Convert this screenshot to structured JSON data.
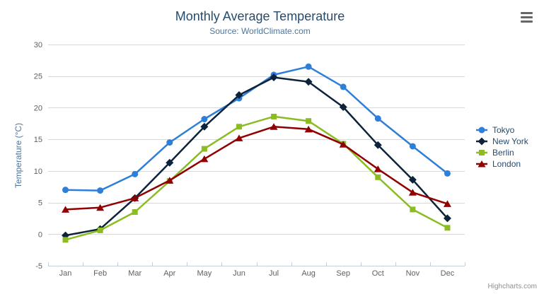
{
  "chart": {
    "credits": "Highcharts.com",
    "context_menu_icon": "hamburger-icon"
  },
  "chart_data": {
    "type": "line",
    "title": "Monthly Average Temperature",
    "subtitle": "Source: WorldClimate.com",
    "xlabel": "",
    "ylabel": "Temperature (°C)",
    "categories": [
      "Jan",
      "Feb",
      "Mar",
      "Apr",
      "May",
      "Jun",
      "Jul",
      "Aug",
      "Sep",
      "Oct",
      "Nov",
      "Dec"
    ],
    "ylim": [
      -5,
      30
    ],
    "yticks": [
      -5,
      0,
      5,
      10,
      15,
      20,
      25,
      30
    ],
    "grid": true,
    "legend_position": "right",
    "series": [
      {
        "name": "Tokyo",
        "marker": "circle",
        "color": "#2f7ed8",
        "values": [
          7.0,
          6.9,
          9.5,
          14.5,
          18.2,
          21.5,
          25.2,
          26.5,
          23.3,
          18.3,
          13.9,
          9.6
        ]
      },
      {
        "name": "New York",
        "marker": "diamond",
        "color": "#0d233a",
        "values": [
          -0.2,
          0.8,
          5.7,
          11.3,
          17.0,
          22.0,
          24.8,
          24.1,
          20.1,
          14.1,
          8.6,
          2.5
        ]
      },
      {
        "name": "Berlin",
        "marker": "square",
        "color": "#8bbc21",
        "values": [
          -0.9,
          0.6,
          3.5,
          8.4,
          13.5,
          17.0,
          18.6,
          17.9,
          14.3,
          9.0,
          3.9,
          1.0
        ]
      },
      {
        "name": "London",
        "marker": "triangle",
        "color": "#910000",
        "values": [
          3.9,
          4.2,
          5.7,
          8.5,
          11.9,
          15.2,
          17.0,
          16.6,
          14.2,
          10.3,
          6.6,
          4.8
        ]
      }
    ]
  },
  "colors": {
    "background": "#ffffff",
    "title": "#274b6d",
    "subtitle": "#4d759e",
    "axis_label": "#606060",
    "axis_line": "#c0d0e0",
    "gridline": "#d8d8d8",
    "legend_text": "#274b6d",
    "credits": "#909090"
  }
}
